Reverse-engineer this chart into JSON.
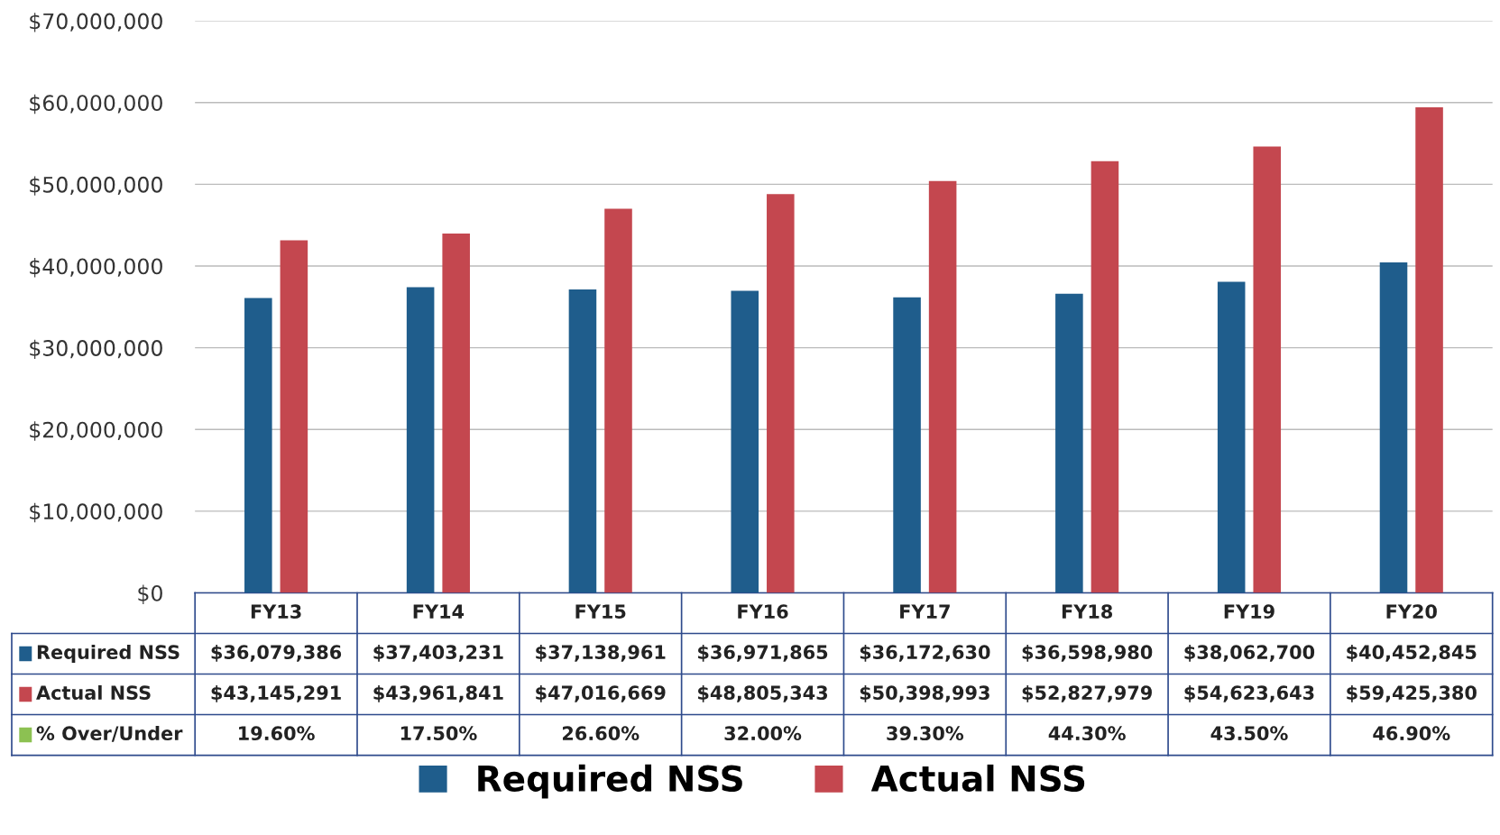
{
  "chart_data": {
    "type": "bar",
    "categories": [
      "FY13",
      "FY14",
      "FY15",
      "FY16",
      "FY17",
      "FY18",
      "FY19",
      "FY20"
    ],
    "series": [
      {
        "name": "Required NSS",
        "color": "#1f5d8c",
        "values": [
          36079386,
          37403231,
          37138961,
          36971865,
          36172630,
          36598980,
          38062700,
          40452845
        ],
        "value_labels": [
          "$36,079,386",
          "$37,403,231",
          "$37,138,961",
          "$36,971,865",
          "$36,172,630",
          "$36,598,980",
          "$38,062,700",
          "$40,452,845"
        ]
      },
      {
        "name": "Actual NSS",
        "color": "#c4474f",
        "values": [
          43145291,
          43961841,
          47016669,
          48805343,
          50398993,
          52827979,
          54623643,
          59425380
        ],
        "value_labels": [
          "$43,145,291",
          "$43,961,841",
          "$47,016,669",
          "$48,805,343",
          "$50,398,993",
          "$52,827,979",
          "$54,623,643",
          "$59,425,380"
        ]
      },
      {
        "name": "% Over/Under",
        "color": "#8cc152",
        "values": [
          null,
          null,
          null,
          null,
          null,
          null,
          null,
          null
        ],
        "value_labels": [
          "19.60%",
          "17.50%",
          "26.60%",
          "32.00%",
          "39.30%",
          "44.30%",
          "43.50%",
          "46.90%"
        ]
      }
    ],
    "ylim": [
      0,
      70000000
    ],
    "yticks": [
      {
        "value": 0,
        "label": "$0"
      },
      {
        "value": 10000000,
        "label": "$10,000,000"
      },
      {
        "value": 20000000,
        "label": "$20,000,000"
      },
      {
        "value": 30000000,
        "label": "$30,000,000"
      },
      {
        "value": 40000000,
        "label": "$40,000,000"
      },
      {
        "value": 50000000,
        "label": "$50,000,000"
      },
      {
        "value": 60000000,
        "label": "$60,000,000"
      },
      {
        "value": 70000000,
        "label": "$70,000,000"
      }
    ],
    "grid": "y",
    "legend": "bottom"
  }
}
